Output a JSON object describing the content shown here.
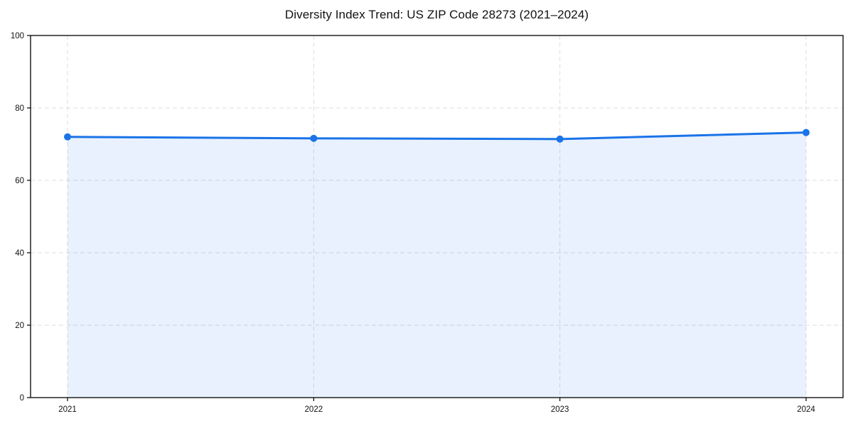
{
  "figure": {
    "background": "#ffffff"
  },
  "chart_data": {
    "type": "line",
    "title": "Diversity Index Trend: US ZIP Code 28273 (2021–2024)",
    "x": [
      2021,
      2022,
      2023,
      2024
    ],
    "xtick_labels": [
      "2021",
      "2022",
      "2023",
      "2024"
    ],
    "series": [
      {
        "name": "Diversity Index",
        "values": [
          72.0,
          71.6,
          71.4,
          73.2
        ]
      }
    ],
    "xlabel": "",
    "ylabel": "",
    "ylim": [
      0,
      100
    ],
    "yticks": [
      0,
      20,
      40,
      60,
      80,
      100
    ],
    "ytick_labels": [
      "0",
      "20",
      "40",
      "60",
      "80",
      "100"
    ],
    "grid": true,
    "grid_style": "dashed",
    "legend_position": "none",
    "area_fill": true,
    "colors": {
      "line": "#1a73e8",
      "marker": "#1a73e8",
      "fill_rgba": "rgba(26,115,232,0.10)",
      "grid": "#dcdcdc",
      "spine": "#000000",
      "tick": "#000000",
      "tick_label": "#111111",
      "title": "#111111",
      "background": "#ffffff"
    }
  }
}
